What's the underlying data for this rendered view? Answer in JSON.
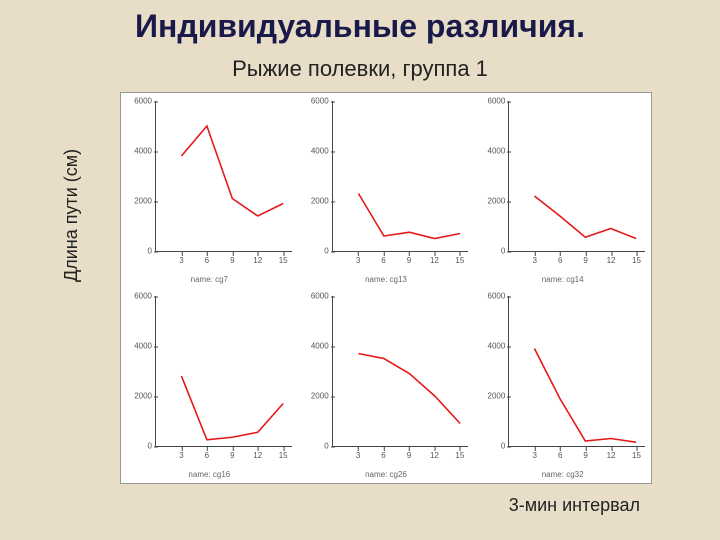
{
  "title": {
    "text": "Индивидуальные различия.",
    "fontsize": 32,
    "color": "#1a1a4a"
  },
  "subtitle": {
    "text": "Рыжие полевки, группа 1",
    "fontsize": 22,
    "color": "#222222"
  },
  "y_axis_label": {
    "text": "Длина\nпути (см)",
    "fontsize": 18
  },
  "x_axis_label": {
    "text": "3-мин интервал",
    "fontsize": 18
  },
  "background_color": "#e8dec8",
  "panel_bg": "#ffffff",
  "line_color": "#e51919",
  "line_width": 1.6,
  "axis_color": "#444444",
  "tick_fontsize": 8,
  "caption_fontsize": 8,
  "grid": {
    "rows": 2,
    "cols": 3,
    "xlim": [
      0,
      16
    ],
    "ylim": [
      0,
      6000
    ],
    "xticks": [
      3,
      6,
      9,
      12,
      15
    ],
    "yticks": [
      0,
      2000,
      4000,
      6000
    ],
    "panels": [
      {
        "caption": "name: cg7",
        "x": [
          3,
          6,
          9,
          12,
          15
        ],
        "y": [
          3800,
          5000,
          2100,
          1400,
          1900
        ]
      },
      {
        "caption": "name: cg13",
        "x": [
          3,
          6,
          9,
          12,
          15
        ],
        "y": [
          2300,
          600,
          750,
          500,
          700
        ]
      },
      {
        "caption": "name: cg14",
        "x": [
          3,
          6,
          9,
          12,
          15
        ],
        "y": [
          2200,
          1400,
          550,
          900,
          500
        ]
      },
      {
        "caption": "name: cg16",
        "x": [
          3,
          6,
          9,
          12,
          15
        ],
        "y": [
          2800,
          250,
          350,
          550,
          1700
        ]
      },
      {
        "caption": "name: cg26",
        "x": [
          3,
          6,
          9,
          12,
          15
        ],
        "y": [
          3700,
          3500,
          2900,
          2000,
          900
        ]
      },
      {
        "caption": "name: cg32",
        "x": [
          3,
          6,
          9,
          12,
          15
        ],
        "y": [
          3900,
          1900,
          200,
          300,
          150
        ]
      }
    ]
  }
}
